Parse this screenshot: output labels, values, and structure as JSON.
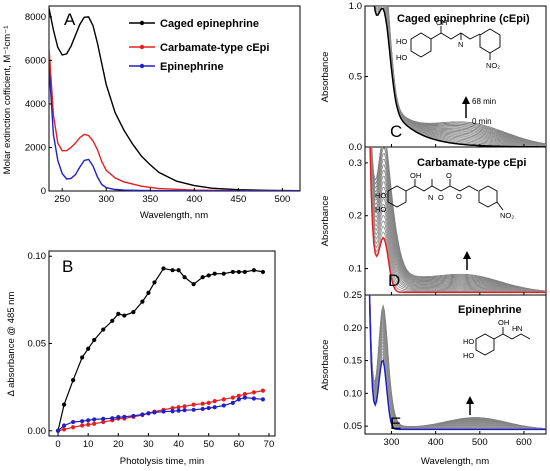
{
  "chart_data": [
    {
      "id": "A",
      "type": "line",
      "panel_label": "A",
      "xlabel": "Wavelength, nm",
      "ylabel": "Molar extinction cofficient, M⁻¹cm⁻¹",
      "xlim": [
        235,
        520
      ],
      "ylim": [
        0,
        8500
      ],
      "xticks": [
        250,
        300,
        350,
        400,
        450,
        500
      ],
      "yticks": [
        0,
        2000,
        4000,
        6000,
        8000
      ],
      "legend": {
        "position": "top-right",
        "entries": [
          "Caged epinephrine",
          "Carbamate-type cEpi",
          "Epinephrine"
        ]
      },
      "series": [
        {
          "name": "Caged epinephrine",
          "color": "#000000",
          "x": [
            235,
            240,
            245,
            250,
            255,
            260,
            265,
            270,
            275,
            280,
            285,
            290,
            300,
            310,
            320,
            330,
            340,
            350,
            360,
            380,
            400,
            420,
            450,
            480,
            520
          ],
          "y": [
            8400,
            7400,
            6600,
            6250,
            6300,
            6650,
            7150,
            7650,
            7980,
            8000,
            7600,
            6800,
            4900,
            3600,
            2800,
            2150,
            1600,
            1200,
            850,
            450,
            250,
            130,
            60,
            30,
            15
          ]
        },
        {
          "name": "Carbamate-type cEpi",
          "color": "#e32020",
          "x": [
            235,
            240,
            245,
            250,
            255,
            260,
            265,
            270,
            275,
            280,
            285,
            290,
            295,
            300,
            310,
            320,
            340,
            360,
            400,
            450,
            520
          ],
          "y": [
            6600,
            3500,
            2200,
            1850,
            1850,
            2000,
            2200,
            2450,
            2600,
            2550,
            2300,
            1900,
            1350,
            950,
            600,
            420,
            220,
            110,
            40,
            15,
            5
          ]
        },
        {
          "name": "Epinephrine",
          "color": "#2020c8",
          "x": [
            235,
            240,
            245,
            250,
            255,
            260,
            265,
            270,
            275,
            280,
            285,
            290,
            295,
            300,
            310,
            320,
            350,
            400,
            520
          ],
          "y": [
            5800,
            2600,
            1400,
            800,
            550,
            580,
            750,
            1100,
            1400,
            1450,
            1150,
            650,
            300,
            150,
            70,
            40,
            20,
            10,
            5
          ]
        }
      ]
    },
    {
      "id": "B",
      "type": "line",
      "panel_label": "B",
      "xlabel": "Photolysis time, min",
      "ylabel": "Δ absorbance @ 485 nm",
      "xlim": [
        -3,
        72
      ],
      "ylim": [
        -0.003,
        0.103
      ],
      "xticks": [
        0,
        10,
        20,
        30,
        40,
        50,
        60,
        70
      ],
      "yticks": [
        0.0,
        0.05,
        0.1
      ],
      "ytick_labels": [
        "0.00",
        "0.05",
        "0.10"
      ],
      "series": [
        {
          "color": "#000000",
          "x": [
            0,
            2,
            5,
            8,
            10,
            12,
            15,
            18,
            20,
            22,
            25,
            28,
            30,
            32,
            35,
            38,
            40,
            42,
            45,
            48,
            50,
            52,
            55,
            58,
            60,
            62,
            65,
            68
          ],
          "y": [
            0.0,
            0.015,
            0.029,
            0.042,
            0.047,
            0.052,
            0.058,
            0.063,
            0.067,
            0.066,
            0.068,
            0.074,
            0.079,
            0.085,
            0.093,
            0.092,
            0.092,
            0.088,
            0.084,
            0.088,
            0.089,
            0.09,
            0.09,
            0.091,
            0.091,
            0.091,
            0.092,
            0.091
          ]
        },
        {
          "color": "#e32020",
          "x": [
            0,
            2,
            5,
            8,
            10,
            12,
            15,
            18,
            20,
            22,
            25,
            28,
            30,
            32,
            35,
            38,
            40,
            42,
            45,
            48,
            50,
            52,
            55,
            58,
            60,
            62,
            65,
            68
          ],
          "y": [
            0.0,
            0.0008,
            0.002,
            0.003,
            0.0035,
            0.004,
            0.005,
            0.006,
            0.007,
            0.007,
            0.008,
            0.009,
            0.01,
            0.011,
            0.012,
            0.013,
            0.0135,
            0.014,
            0.015,
            0.0155,
            0.016,
            0.017,
            0.018,
            0.019,
            0.02,
            0.021,
            0.022,
            0.023
          ]
        },
        {
          "color": "#2020c8",
          "x": [
            0,
            2,
            5,
            8,
            10,
            12,
            15,
            18,
            20,
            22,
            25,
            28,
            30,
            32,
            35,
            38,
            40,
            42,
            45,
            48,
            50,
            52,
            55,
            58,
            60,
            62,
            65,
            68
          ],
          "y": [
            0.0,
            0.003,
            0.005,
            0.0055,
            0.006,
            0.0065,
            0.0068,
            0.0072,
            0.0078,
            0.008,
            0.0085,
            0.0093,
            0.01,
            0.0105,
            0.011,
            0.0112,
            0.0115,
            0.0118,
            0.012,
            0.0125,
            0.013,
            0.0135,
            0.0145,
            0.016,
            0.018,
            0.019,
            0.0185,
            0.018
          ]
        }
      ]
    },
    {
      "id": "C",
      "type": "line",
      "panel_label": "C",
      "title": "Caged epinephrine (cEpi)",
      "ylabel": "Absorbance",
      "xlim": [
        240,
        650
      ],
      "ylim": [
        0,
        1.0
      ],
      "yticks": [
        0.0,
        0.5,
        1.0
      ],
      "ytick_labels": [
        "0.0",
        "0.5",
        "1.0"
      ],
      "arrow_labels": [
        "68 min",
        "0 min"
      ],
      "chem_labels": [
        "HO",
        "HO",
        "OH",
        "N",
        "NO₂"
      ],
      "time_series_count": 19,
      "initial_color": "#000000",
      "final_color": "#808080"
    },
    {
      "id": "D",
      "type": "line",
      "panel_label": "D",
      "title": "Carbamate-type cEpi",
      "ylabel": "Absorbance",
      "xlim": [
        240,
        650
      ],
      "ylim": [
        0.05,
        0.33
      ],
      "yticks": [
        0.1,
        0.2,
        0.3
      ],
      "ytick_labels": [
        "0.1",
        "0.2",
        "0.3"
      ],
      "chem_labels": [
        "HO",
        "HO",
        "OH",
        "N",
        "O",
        "O",
        "O",
        "NO₂"
      ],
      "time_series_count": 19,
      "initial_color": "#e32020",
      "final_color": "#808080"
    },
    {
      "id": "E",
      "type": "line",
      "panel_label": "E",
      "title": "Epinephrine",
      "xlabel": "Wavelength, nm",
      "ylabel": "Absorbance",
      "xlim": [
        240,
        650
      ],
      "ylim": [
        0.038,
        0.25
      ],
      "xticks": [
        300,
        400,
        500,
        600
      ],
      "yticks": [
        0.05,
        0.1,
        0.15,
        0.2,
        0.25
      ],
      "ytick_labels": [
        "0.05",
        "0.10",
        "0.15",
        "0.20",
        "0.25"
      ],
      "chem_labels": [
        "HO",
        "HO",
        "OH",
        "N",
        "H"
      ],
      "time_series_count": 19,
      "initial_color": "#2020c8",
      "final_color": "#808080"
    }
  ]
}
